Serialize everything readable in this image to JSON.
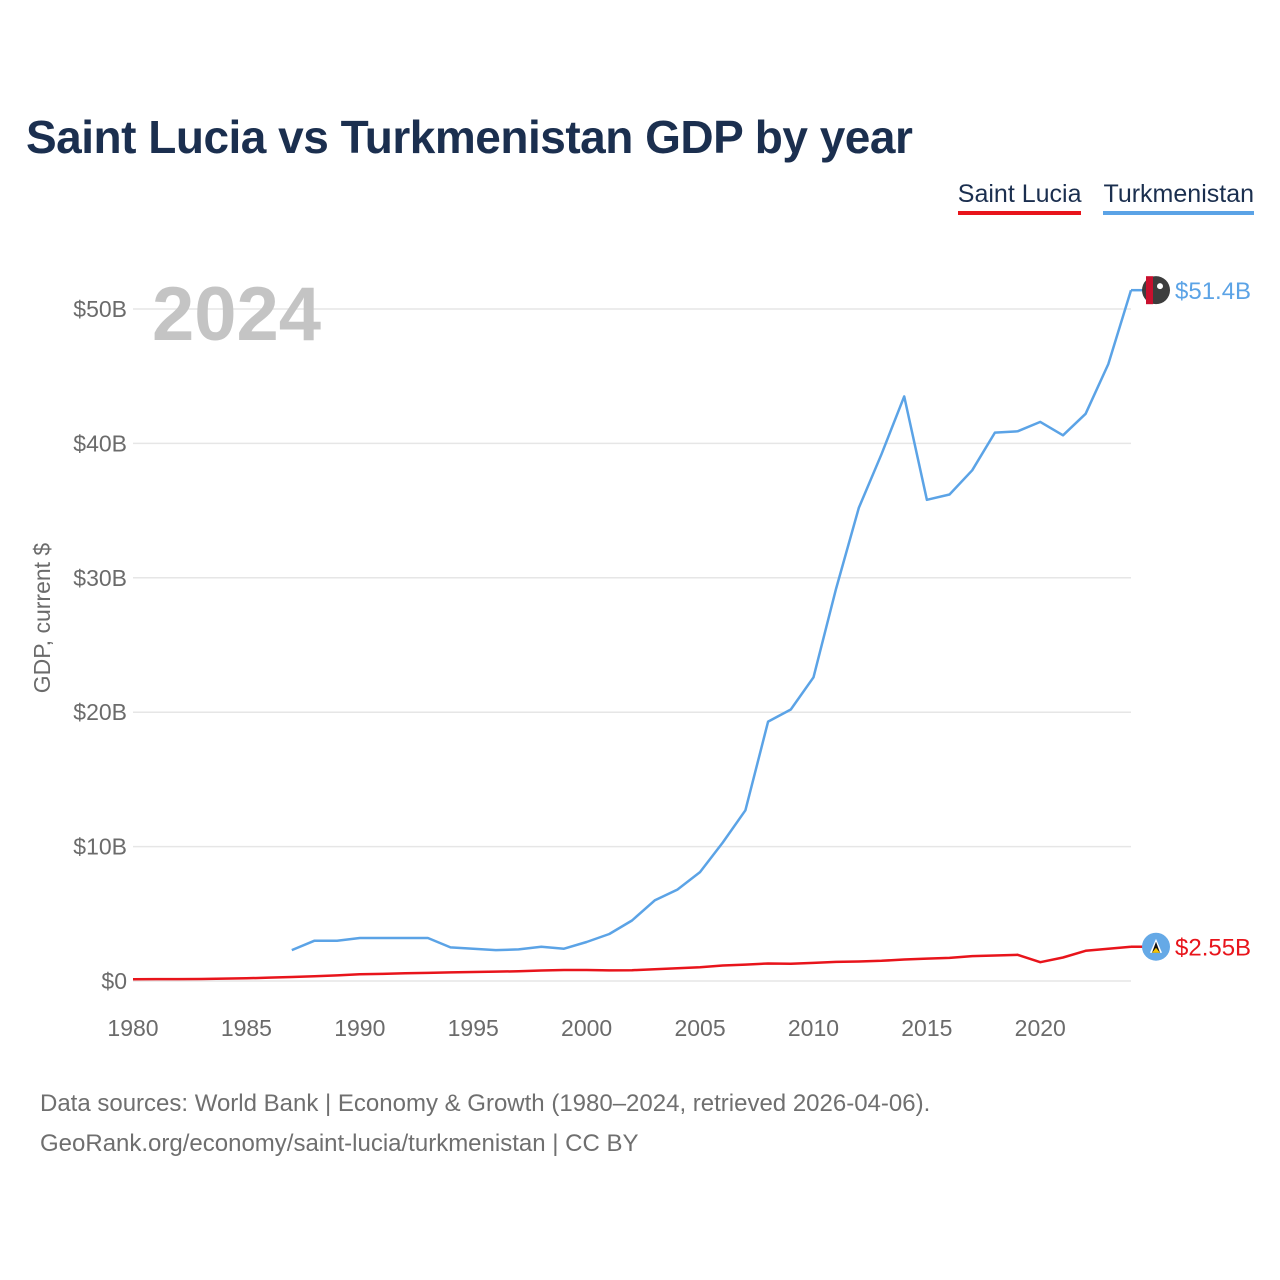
{
  "title": "Saint Lucia vs Turkmenistan GDP by year",
  "year_label": "2024",
  "legend": [
    {
      "label": "Saint Lucia",
      "color": "#e8141b"
    },
    {
      "label": "Turkmenistan",
      "color": "#5ba3e6"
    }
  ],
  "footer": {
    "line1": "Data sources: World Bank | Economy & Growth (1980–2024, retrieved 2026-04-06).",
    "line2": "GeoRank.org/economy/saint-lucia/turkmenistan | CC BY"
  },
  "chart_data": {
    "type": "line",
    "title": "Saint Lucia vs Turkmenistan GDP by year",
    "xlabel": "",
    "ylabel": "GDP, current $",
    "xlim": [
      1980,
      2024
    ],
    "ylim": [
      0,
      50
    ],
    "y_unit": "billion US$",
    "x_ticks": [
      1980,
      1985,
      1990,
      1995,
      2000,
      2005,
      2010,
      2015,
      2020
    ],
    "y_ticks": [
      0,
      10,
      20,
      30,
      40,
      50
    ],
    "y_tick_labels": [
      "$0",
      "$10B",
      "$20B",
      "$30B",
      "$40B",
      "$50B"
    ],
    "grid": true,
    "series": [
      {
        "name": "Saint Lucia",
        "color": "#e8141b",
        "end_label": "$2.55B",
        "icon": "saint-lucia-flag-icon",
        "x": [
          1980,
          1981,
          1982,
          1983,
          1984,
          1985,
          1986,
          1987,
          1988,
          1989,
          1990,
          1991,
          1992,
          1993,
          1994,
          1995,
          1996,
          1997,
          1998,
          1999,
          2000,
          2001,
          2002,
          2003,
          2004,
          2005,
          2006,
          2007,
          2008,
          2009,
          2010,
          2011,
          2012,
          2013,
          2014,
          2015,
          2016,
          2017,
          2018,
          2019,
          2020,
          2021,
          2022,
          2023,
          2024
        ],
        "values": [
          0.13,
          0.14,
          0.14,
          0.15,
          0.18,
          0.2,
          0.25,
          0.3,
          0.35,
          0.42,
          0.5,
          0.53,
          0.58,
          0.6,
          0.64,
          0.67,
          0.7,
          0.72,
          0.78,
          0.82,
          0.82,
          0.79,
          0.8,
          0.87,
          0.95,
          1.02,
          1.15,
          1.22,
          1.3,
          1.28,
          1.35,
          1.42,
          1.45,
          1.5,
          1.6,
          1.67,
          1.72,
          1.85,
          1.9,
          1.95,
          1.4,
          1.75,
          2.25,
          2.4,
          2.55
        ]
      },
      {
        "name": "Turkmenistan",
        "color": "#5ba3e6",
        "end_label": "$51.4B",
        "icon": "turkmenistan-flag-icon",
        "x": [
          1987,
          1988,
          1989,
          1990,
          1991,
          1992,
          1993,
          1994,
          1995,
          1996,
          1997,
          1998,
          1999,
          2000,
          2001,
          2002,
          2003,
          2004,
          2005,
          2006,
          2007,
          2008,
          2009,
          2010,
          2011,
          2012,
          2013,
          2014,
          2015,
          2016,
          2017,
          2018,
          2019,
          2020,
          2021,
          2022,
          2023,
          2024
        ],
        "values": [
          2.3,
          3.0,
          3.0,
          3.2,
          3.2,
          3.2,
          3.2,
          2.5,
          2.4,
          2.3,
          2.35,
          2.55,
          2.4,
          2.9,
          3.5,
          4.5,
          6.0,
          6.8,
          8.1,
          10.3,
          12.7,
          19.3,
          20.2,
          22.6,
          29.2,
          35.2,
          39.2,
          43.5,
          35.8,
          36.2,
          38.0,
          40.8,
          40.9,
          41.6,
          40.6,
          42.2,
          45.9,
          51.4
        ]
      }
    ]
  }
}
